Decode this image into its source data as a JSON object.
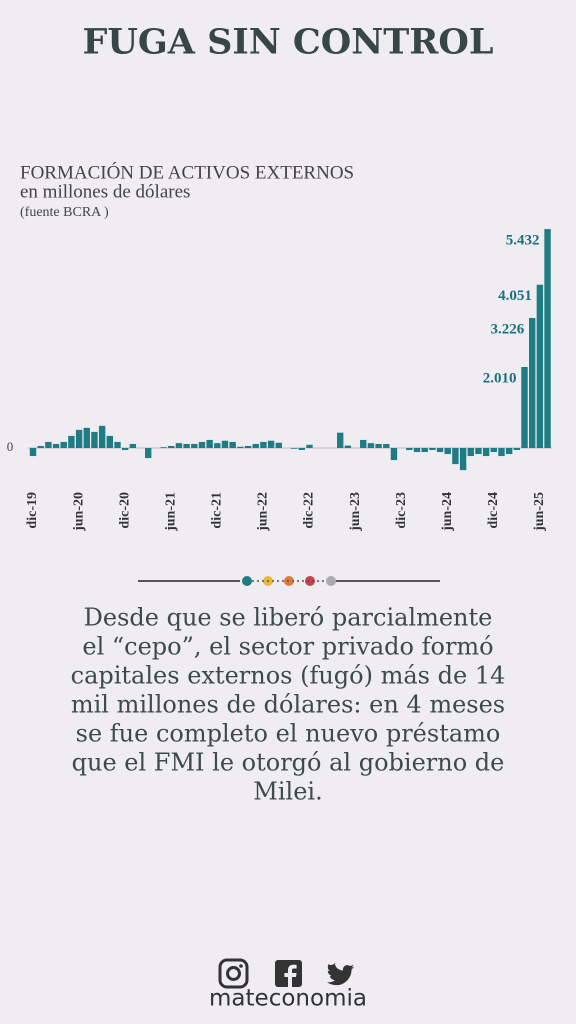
{
  "header": {
    "title": "FUGA SIN CONTROL"
  },
  "chart_data": {
    "type": "bar",
    "title": "FORMACIÓN DE ACTIVOS EXTERNOS",
    "subtitle": "en millones de dólares",
    "source": "(fuente BCRA )",
    "color": "#1f7c84",
    "categories": [
      "dic-19",
      null,
      null,
      null,
      null,
      null,
      "jun-20",
      null,
      null,
      null,
      null,
      null,
      "dic-20",
      null,
      null,
      null,
      null,
      null,
      "jun-21",
      null,
      null,
      null,
      null,
      null,
      "dic-21",
      null,
      null,
      null,
      null,
      null,
      "jun-22",
      null,
      null,
      null,
      null,
      null,
      "dic-22",
      null,
      null,
      null,
      null,
      null,
      "jun-23",
      null,
      null,
      null,
      null,
      null,
      "dic-23",
      null,
      null,
      null,
      null,
      null,
      "jun-24",
      null,
      null,
      null,
      null,
      null,
      "dic-24",
      null,
      null,
      null,
      null,
      null,
      "jun-25",
      null
    ],
    "values": [
      -200,
      50,
      150,
      100,
      150,
      300,
      450,
      500,
      400,
      550,
      300,
      150,
      -50,
      100,
      0,
      -250,
      0,
      20,
      50,
      120,
      100,
      100,
      150,
      200,
      120,
      180,
      150,
      30,
      50,
      100,
      150,
      180,
      130,
      0,
      -20,
      -50,
      80,
      0,
      0,
      0,
      380,
      60,
      0,
      200,
      120,
      100,
      100,
      -300,
      0,
      -50,
      -100,
      -100,
      -50,
      -100,
      -150,
      -400,
      -550,
      -200,
      -150,
      -200,
      -100,
      -200,
      -150,
      -50,
      2010,
      3226,
      4051,
      5432
    ],
    "value_labels": [
      null,
      null,
      null,
      null,
      null,
      null,
      null,
      null,
      null,
      null,
      null,
      null,
      null,
      null,
      null,
      null,
      null,
      null,
      null,
      null,
      null,
      null,
      null,
      null,
      null,
      null,
      null,
      null,
      null,
      null,
      null,
      null,
      null,
      null,
      null,
      null,
      null,
      null,
      null,
      null,
      null,
      null,
      null,
      null,
      null,
      null,
      null,
      null,
      null,
      null,
      null,
      null,
      null,
      null,
      null,
      null,
      null,
      null,
      null,
      null,
      null,
      null,
      null,
      null,
      "2.010",
      "3.226",
      "4.051",
      "5.432"
    ],
    "ylim": [
      -700,
      5600
    ],
    "yticks": [
      0
    ]
  },
  "body": {
    "lines": [
      "Desde que se liberó parcialmente",
      "el “cepo”, el sector privado formó",
      "capitales externos (fugó) más de 14",
      "mil millones de dólares: en 4 meses",
      "se fue completo el nuevo préstamo",
      "que el FMI le otorgó al gobierno de",
      "Milei."
    ]
  },
  "footer": {
    "brand": "mateconomia"
  }
}
